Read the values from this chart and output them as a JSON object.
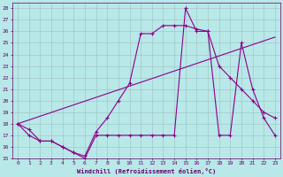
{
  "line1_x": [
    0,
    1,
    2,
    3,
    4,
    5,
    6,
    7,
    8,
    9,
    10,
    11,
    12,
    13,
    14,
    15,
    16,
    17,
    18,
    19,
    20,
    21,
    22,
    23
  ],
  "line1_y": [
    18,
    17,
    16.5,
    16.5,
    16,
    15.5,
    15,
    17,
    17,
    17,
    17,
    17,
    17,
    17,
    17,
    28,
    26,
    26,
    17,
    17,
    25,
    21,
    18.5,
    17
  ],
  "line2_x": [
    0,
    23
  ],
  "line2_y": [
    18,
    25.5
  ],
  "line3_x": [
    0,
    1,
    2,
    3,
    4,
    5,
    6,
    7,
    8,
    9,
    10,
    11,
    12,
    13,
    14,
    15,
    16,
    17,
    18,
    19,
    20,
    21,
    22,
    23
  ],
  "line3_y": [
    18,
    17.5,
    16.5,
    16.5,
    16,
    15.5,
    15.2,
    17.3,
    18.5,
    20,
    21.5,
    25.8,
    25.8,
    26.5,
    26.5,
    26.5,
    26.2,
    26,
    23,
    22,
    21,
    20,
    19,
    18.5
  ],
  "line_color": "#8b008b",
  "bg_color": "#b8e8e8",
  "grid_color": "#9fbfbf",
  "xlabel": "Windchill (Refroidissement éolien,°C)",
  "xlabel_color": "#660066",
  "tick_color": "#660066",
  "ylim": [
    15,
    28.5
  ],
  "xlim": [
    -0.5,
    23.5
  ],
  "yticks": [
    15,
    16,
    17,
    18,
    19,
    20,
    21,
    22,
    23,
    24,
    25,
    26,
    27,
    28
  ],
  "xticks": [
    0,
    1,
    2,
    3,
    4,
    5,
    6,
    7,
    8,
    9,
    10,
    11,
    12,
    13,
    14,
    15,
    16,
    17,
    18,
    19,
    20,
    21,
    22,
    23
  ]
}
